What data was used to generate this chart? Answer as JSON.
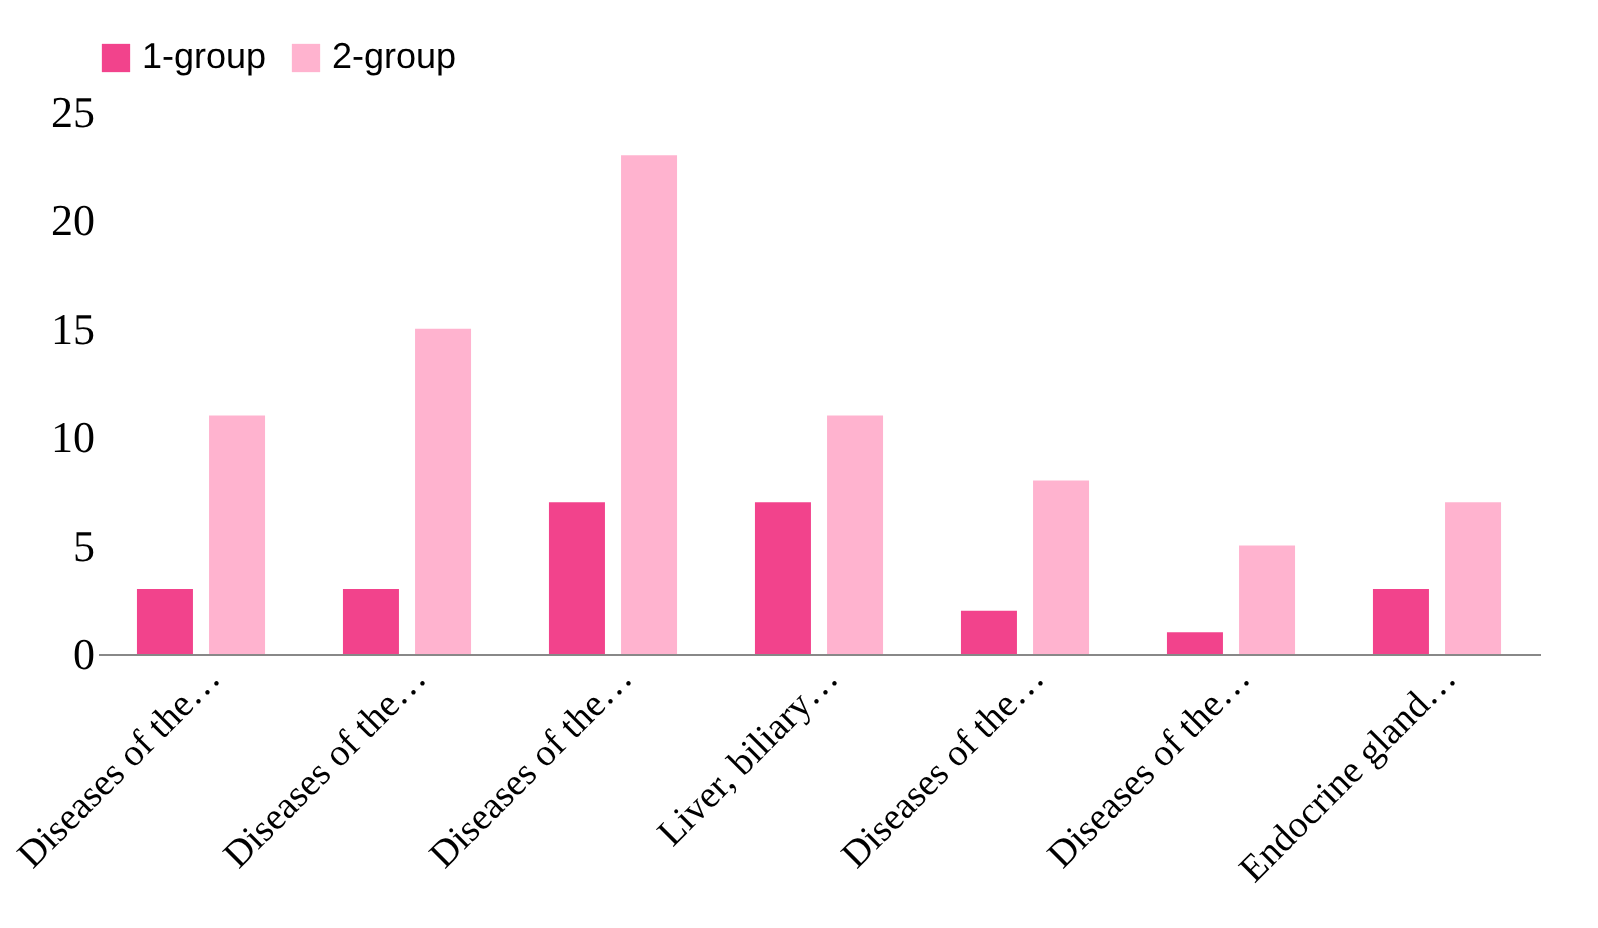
{
  "chart_data": {
    "type": "bar",
    "categories": [
      "Diseases of the…",
      "Diseases of the…",
      "Diseases of the…",
      "Liver, biliary…",
      "Diseases of the…",
      "Diseases of the…",
      "Endocrine gland…"
    ],
    "series": [
      {
        "name": "1-group",
        "color": "#f2438c",
        "values": [
          3,
          3,
          7,
          7,
          2,
          1,
          3
        ]
      },
      {
        "name": "2-group",
        "color": "#ffb3cf",
        "values": [
          11,
          15,
          23,
          11,
          8,
          5,
          7
        ]
      }
    ],
    "ylim": [
      0,
      25
    ],
    "yticks": [
      0,
      5,
      10,
      15,
      20,
      25
    ],
    "grid": false,
    "legend": "top"
  }
}
